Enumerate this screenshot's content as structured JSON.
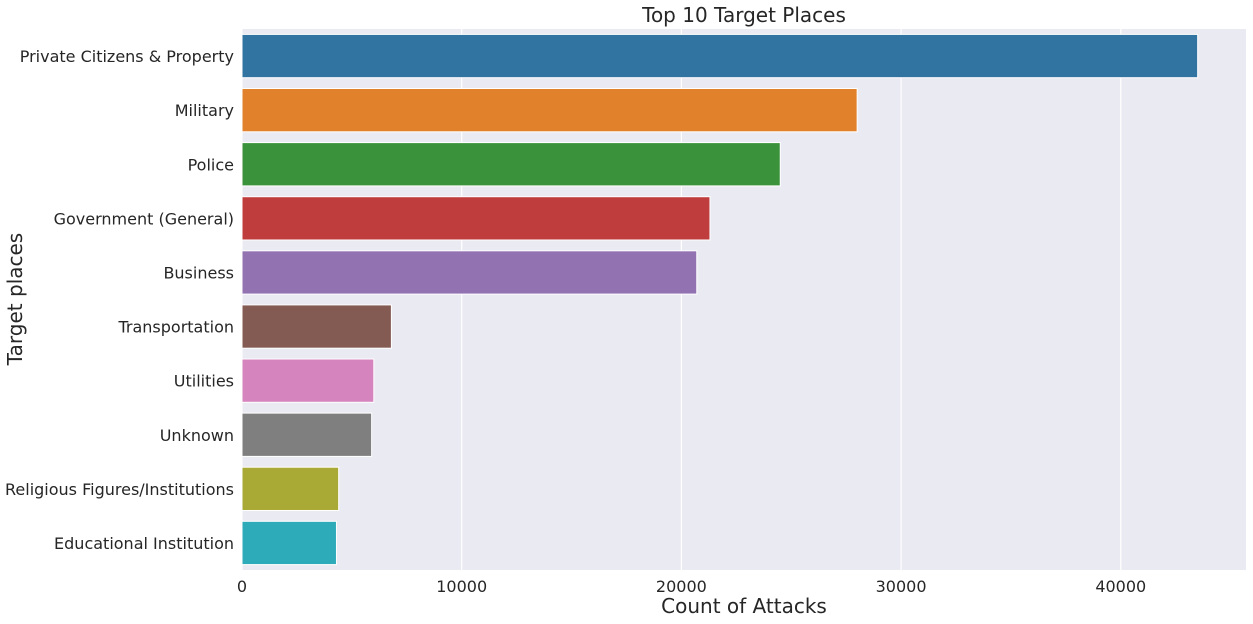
{
  "chart_data": {
    "type": "bar",
    "orientation": "horizontal",
    "title": "Top 10 Target Places",
    "xlabel": "Count of Attacks",
    "ylabel": "Target places",
    "categories": [
      "Private Citizens & Property",
      "Military",
      "Police",
      "Government (General)",
      "Business",
      "Transportation",
      "Utilities",
      "Unknown",
      "Religious Figures/Institutions",
      "Educational Institution"
    ],
    "values": [
      43500,
      28000,
      24500,
      21300,
      20700,
      6800,
      6000,
      5900,
      4400,
      4300
    ],
    "colors": [
      "#3274a1",
      "#e1812c",
      "#3a923a",
      "#c03d3e",
      "#9372b2",
      "#845b53",
      "#d684bd",
      "#7f7f7f",
      "#a9aa35",
      "#2eabb8"
    ],
    "xlim": [
      0,
      45700
    ],
    "xticks": [
      0,
      10000,
      20000,
      30000,
      40000
    ],
    "xtick_labels": [
      "0",
      "10000",
      "20000",
      "30000",
      "40000"
    ],
    "grid": true,
    "background": "#eaeaf2"
  }
}
